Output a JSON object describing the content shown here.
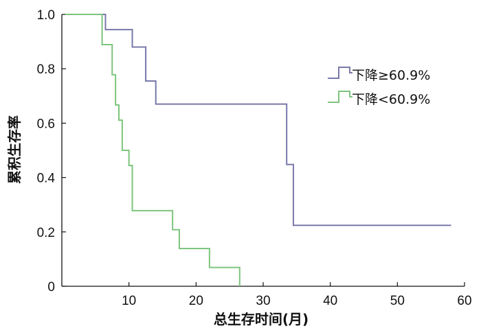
{
  "chart_data": {
    "type": "line",
    "subtype": "step (Kaplan-Meier survival curve)",
    "title": "",
    "xlabel": "总生存时间(月)",
    "ylabel": "累积生存率",
    "xlim": [
      0,
      60
    ],
    "ylim": [
      0,
      1.0
    ],
    "xticks": [
      10,
      20,
      30,
      40,
      50,
      60
    ],
    "xtick_labels": [
      "10",
      "20",
      "30",
      "40",
      "50",
      "60"
    ],
    "yticks": [
      0,
      0.2,
      0.4,
      0.6,
      0.8,
      1.0
    ],
    "ytick_labels": [
      "0",
      "0.2",
      "0.4",
      "0.6",
      "0.8",
      "1.0"
    ],
    "grid": false,
    "legend_position": "upper-right",
    "series": [
      {
        "name": "下降≥60.9%",
        "color": "#7878aa",
        "steps": [
          [
            0.5,
            1.0
          ],
          [
            6.5,
            0.944
          ],
          [
            10.5,
            0.88
          ],
          [
            12.5,
            0.755
          ],
          [
            14.0,
            0.67
          ],
          [
            33.5,
            0.448
          ],
          [
            34.5,
            0.224
          ],
          [
            58.0,
            0.224
          ]
        ]
      },
      {
        "name": "下降<60.9%",
        "color": "#7dc47d",
        "steps": [
          [
            0.5,
            1.0
          ],
          [
            6.0,
            0.889
          ],
          [
            7.5,
            0.778
          ],
          [
            8.0,
            0.667
          ],
          [
            8.5,
            0.611
          ],
          [
            9.0,
            0.5
          ],
          [
            10.0,
            0.444
          ],
          [
            10.5,
            0.278
          ],
          [
            16.5,
            0.208
          ],
          [
            17.5,
            0.139
          ],
          [
            22.0,
            0.069
          ],
          [
            26.5,
            0.0
          ]
        ]
      }
    ]
  }
}
